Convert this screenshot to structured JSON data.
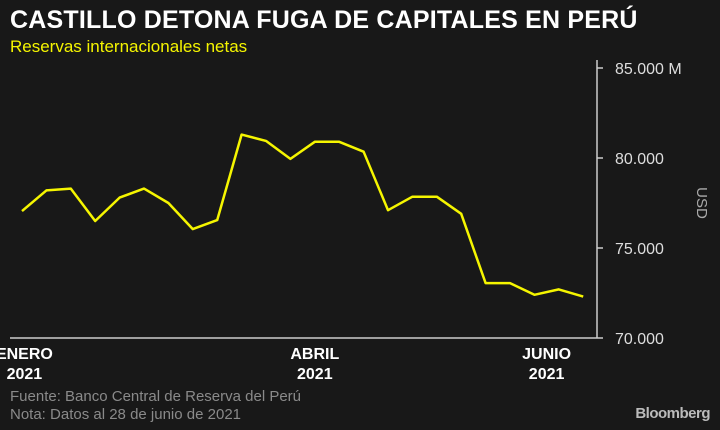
{
  "header": {
    "title": "CASTILLO DETONA FUGA DE CAPITALES EN PERÚ",
    "subtitle": "Reservas internacionales netas"
  },
  "chart_data": {
    "type": "line",
    "title": "CASTILLO DETONA FUGA DE CAPITALES EN PERÚ",
    "subtitle": "Reservas internacionales netas",
    "ylabel": "USD",
    "ylim": [
      70000,
      85000
    ],
    "y_ticks": [
      {
        "value": 85000,
        "label": "85.000"
      },
      {
        "value": 80000,
        "label": "80.000"
      },
      {
        "value": 75000,
        "label": "75.000"
      },
      {
        "value": 70000,
        "label": "70.000"
      }
    ],
    "y_unit_suffix": "M",
    "x_ticks": [
      {
        "index": 1,
        "label": "ENERO",
        "year": "2021"
      },
      {
        "index": 12,
        "label": "ABRIL",
        "year": "2021"
      },
      {
        "index": 21.5,
        "label": "JUNIO",
        "year": "2021"
      }
    ],
    "series": [
      {
        "name": "Reservas internacionales netas",
        "color": "#f5f500",
        "values": [
          77050,
          78200,
          78300,
          76500,
          77800,
          78300,
          77500,
          76050,
          76550,
          81300,
          80950,
          79950,
          80900,
          80900,
          80350,
          77100,
          77850,
          77850,
          76900,
          73050,
          73050,
          72400,
          72700,
          72300
        ]
      }
    ],
    "grid": false
  },
  "footer": {
    "source": "Fuente: Banco Central de Reserva del Perú",
    "note": "Nota: Datos al 28 de junio de 2021",
    "logo": "Bloomberg"
  }
}
